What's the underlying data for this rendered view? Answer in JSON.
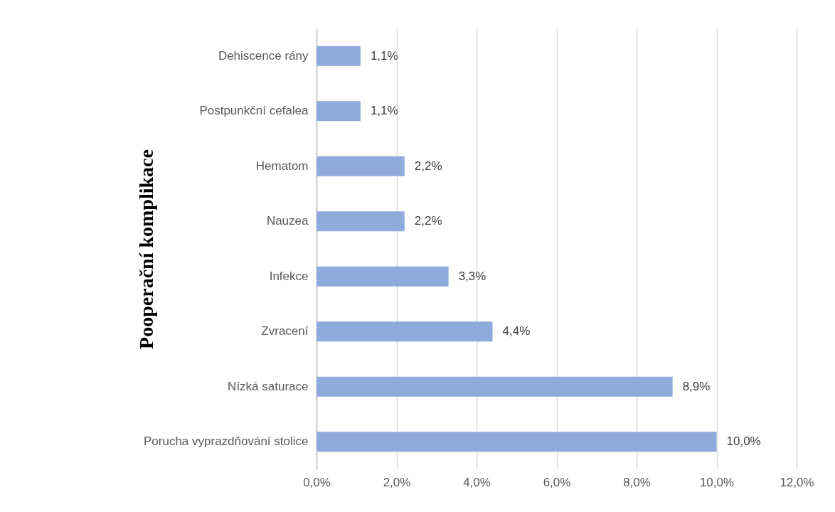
{
  "chart_data": {
    "type": "bar",
    "orientation": "horizontal",
    "ylabel": "Pooperační komplikace",
    "categories": [
      "Dehiscence rány",
      "Postpunkční cefalea",
      "Hematom",
      "Nauzea",
      "Infekce",
      "Zvracení",
      "Nízká saturace",
      "Porucha vyprazdňování stolice"
    ],
    "values": [
      1.1,
      1.1,
      2.2,
      2.2,
      3.3,
      4.4,
      8.9,
      10.0
    ],
    "value_labels": [
      "1,1%",
      "1,1%",
      "2,2%",
      "2,2%",
      "3,3%",
      "4,4%",
      "8,9%",
      "10,0%"
    ],
    "color": "#8faadc",
    "xlim": [
      0,
      12
    ],
    "xticks": [
      {
        "value": 0,
        "label": "0,0%"
      },
      {
        "value": 2,
        "label": "2,0%"
      },
      {
        "value": 4,
        "label": "4,0%"
      },
      {
        "value": 6,
        "label": "6,0%"
      },
      {
        "value": 8,
        "label": "8,0%"
      },
      {
        "value": 10,
        "label": "10,0%"
      },
      {
        "value": 12,
        "label": "12,0%"
      }
    ],
    "grid": "x"
  }
}
